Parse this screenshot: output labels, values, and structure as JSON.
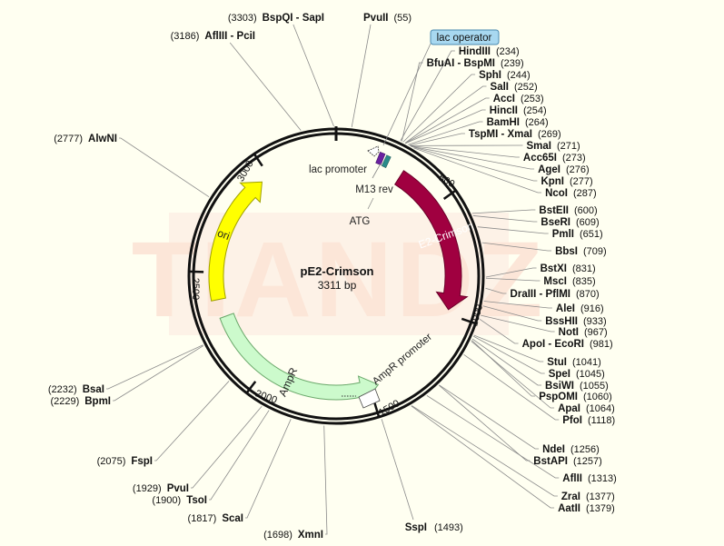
{
  "plasmid": {
    "name": "pE2-Crimson",
    "size_label": "3311 bp",
    "length": 3311,
    "watermark": "TIANDZ"
  },
  "ticks": [
    {
      "pos": 500,
      "label": "500"
    },
    {
      "pos": 1000,
      "label": "1000"
    },
    {
      "pos": 1500,
      "label": "1500"
    },
    {
      "pos": 2000,
      "label": "2000"
    },
    {
      "pos": 2500,
      "label": "2500"
    },
    {
      "pos": 3000,
      "label": "3000"
    }
  ],
  "features": [
    {
      "id": "e2-crimson",
      "label": "E2-Crimson",
      "start": 300,
      "end": 980,
      "color": "#a00040",
      "stroke": "#6a0028",
      "text_color": "#ffffff"
    },
    {
      "id": "ampr",
      "label": "AmpR",
      "start": 1460,
      "end": 2300,
      "color": "#ccfacc",
      "stroke": "#6aa86a",
      "text_color": "#222222"
    },
    {
      "id": "ori",
      "label": "ori",
      "start": 2380,
      "end": 2960,
      "color": "#ffff00",
      "stroke": "#a0a000",
      "text_color": "#222222"
    }
  ],
  "small_features": [
    {
      "id": "lac-promoter",
      "label": "lac promoter",
      "pos": 150,
      "label_pos": 3245
    },
    {
      "id": "m13-rev",
      "label": "M13 rev",
      "pos": 180,
      "label_pos": 3270
    },
    {
      "id": "atg",
      "label": "ATG",
      "pos": 300,
      "label_pos": 3305
    },
    {
      "id": "ampr-promoter",
      "label": "AmpR promoter",
      "pos": 1420,
      "label_pos": 1300
    }
  ],
  "callout": {
    "label": "lac operator",
    "bg": "#a8d8f0",
    "border": "#4a8ab0"
  },
  "sites_right": [
    {
      "name": "HindIII",
      "pos": "(234)"
    },
    {
      "name": "BfuAI - BspMI",
      "pos": "(239)"
    },
    {
      "name": "SphI",
      "pos": "(244)"
    },
    {
      "name": "SalI",
      "pos": "(252)"
    },
    {
      "name": "AccI",
      "pos": "(253)"
    },
    {
      "name": "HincII",
      "pos": "(254)"
    },
    {
      "name": "BamHI",
      "pos": "(264)"
    },
    {
      "name": "TspMI - XmaI",
      "pos": "(269)"
    },
    {
      "name": "SmaI",
      "pos": "(271)"
    },
    {
      "name": "Acc65I",
      "pos": "(273)"
    },
    {
      "name": "AgeI",
      "pos": "(276)"
    },
    {
      "name": "KpnI",
      "pos": "(277)"
    },
    {
      "name": "NcoI",
      "pos": "(287)"
    },
    {
      "name": "BstEII",
      "pos": "(600)"
    },
    {
      "name": "BseRI",
      "pos": "(609)"
    },
    {
      "name": "PmlI",
      "pos": "(651)"
    },
    {
      "name": "BbsI",
      "pos": "(709)"
    },
    {
      "name": "BstXI",
      "pos": "(831)"
    },
    {
      "name": "MscI",
      "pos": "(835)"
    },
    {
      "name": "DraIII - PflMI",
      "pos": "(870)"
    },
    {
      "name": "AleI",
      "pos": "(916)"
    },
    {
      "name": "BssHII",
      "pos": "(933)"
    },
    {
      "name": "NotI",
      "pos": "(967)"
    },
    {
      "name": "ApoI - EcoRI",
      "pos": "(981)"
    },
    {
      "name": "StuI",
      "pos": "(1041)"
    },
    {
      "name": "SpeI",
      "pos": "(1045)"
    },
    {
      "name": "BsiWI",
      "pos": "(1055)"
    },
    {
      "name": "PspOMI",
      "pos": "(1060)"
    },
    {
      "name": "ApaI",
      "pos": "(1064)"
    },
    {
      "name": "PfoI",
      "pos": "(1118)"
    },
    {
      "name": "NdeI",
      "pos": "(1256)"
    },
    {
      "name": "BstAPI",
      "pos": "(1257)"
    },
    {
      "name": "AflII",
      "pos": "(1313)"
    },
    {
      "name": "ZraI",
      "pos": "(1377)"
    },
    {
      "name": "AatII",
      "pos": "(1379)"
    }
  ],
  "sites_top": [
    {
      "name": "BspQI - SapI",
      "pos": "(3303)"
    },
    {
      "name": "PvuII",
      "pos": "(55)"
    },
    {
      "name": "AflIII - PciI",
      "pos": "(3186)"
    }
  ],
  "sites_left": [
    {
      "name": "AlwNI",
      "pos": "(2777)"
    },
    {
      "name": "BsaI",
      "pos": "(2232)"
    },
    {
      "name": "BpmI",
      "pos": "(2229)"
    },
    {
      "name": "FspI",
      "pos": "(2075)"
    },
    {
      "name": "PvuI",
      "pos": "(1929)"
    },
    {
      "name": "TsoI",
      "pos": "(1900)"
    },
    {
      "name": "ScaI",
      "pos": "(1817)"
    },
    {
      "name": "XmnI",
      "pos": "(1698)"
    }
  ],
  "sites_bottom": [
    {
      "name": "SspI",
      "pos": "(1493)"
    }
  ]
}
